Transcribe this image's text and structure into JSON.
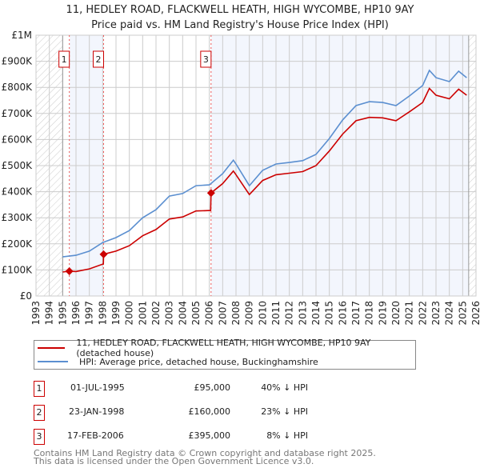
{
  "title": "11, HEDLEY ROAD, FLACKWELL HEATH, HIGH WYCOMBE, HP10 9AY",
  "subtitle": "Price paid vs. HM Land Registry's House Price Index (HPI)",
  "chart_data": {
    "type": "line",
    "xlim": [
      1993,
      2026
    ],
    "ylim": [
      0,
      1000000
    ],
    "x_ticks": [
      1993,
      1994,
      1995,
      1996,
      1997,
      1998,
      1999,
      2000,
      2001,
      2002,
      2003,
      2004,
      2005,
      2006,
      2007,
      2008,
      2009,
      2010,
      2011,
      2012,
      2013,
      2014,
      2015,
      2016,
      2017,
      2018,
      2019,
      2020,
      2021,
      2022,
      2023,
      2024,
      2025,
      2026
    ],
    "y_ticks": [
      0,
      100000,
      200000,
      300000,
      400000,
      500000,
      600000,
      700000,
      800000,
      900000,
      1000000
    ],
    "y_tick_labels": [
      "£0",
      "£100K",
      "£200K",
      "£300K",
      "£400K",
      "£500K",
      "£600K",
      "£700K",
      "£800K",
      "£900K",
      "£1M"
    ],
    "grid": true,
    "hatched_before": 1995.0,
    "hatched_after": 2025.45,
    "series": [
      {
        "name": "11, HEDLEY ROAD, FLACKWELL HEATH, HIGH WYCOMBE, HP10 9AY (detached house)",
        "color": "#cc0000",
        "x": [
          1995.0,
          1995.5,
          1996,
          1997,
          1998.05,
          1998.07,
          1999,
          2000,
          2001,
          2002,
          2003,
          2004,
          2005,
          2006.1,
          2006.13,
          2007,
          2007.8,
          2008,
          2009,
          2010,
          2011,
          2012,
          2013,
          2014,
          2015,
          2016,
          2017,
          2018,
          2019,
          2020,
          2021,
          2022,
          2022.5,
          2023,
          2024,
          2024.7,
          2025.3
        ],
        "y": [
          92000,
          95000,
          94000,
          104000,
          123000,
          160000,
          172000,
          193000,
          231000,
          255000,
          295000,
          303000,
          326000,
          328000,
          395000,
          431000,
          479000,
          465000,
          389000,
          443000,
          465000,
          471000,
          477000,
          500000,
          556000,
          621000,
          672000,
          685000,
          683000,
          672000,
          706000,
          742000,
          796000,
          770000,
          756000,
          793000,
          770000
        ]
      },
      {
        "name": "HPI: Average price, detached house, Buckinghamshire",
        "color": "#5b8fd0",
        "x": [
          1995.0,
          1996,
          1997,
          1998,
          1999,
          2000,
          2001,
          2002,
          2003,
          2004,
          2005,
          2006,
          2007,
          2007.8,
          2008,
          2009,
          2010,
          2011,
          2012,
          2013,
          2014,
          2015,
          2016,
          2017,
          2018,
          2019,
          2020,
          2021,
          2022,
          2022.5,
          2023,
          2024,
          2024.7,
          2025.3
        ],
        "y": [
          150000,
          156000,
          172000,
          205000,
          224000,
          251000,
          300000,
          331000,
          383000,
          393000,
          423000,
          426000,
          469000,
          521000,
          506000,
          423000,
          482000,
          506000,
          512000,
          519000,
          543000,
          604000,
          675000,
          730000,
          745000,
          742000,
          730000,
          767000,
          807000,
          865000,
          837000,
          822000,
          862000,
          837000
        ]
      }
    ],
    "sales": [
      {
        "label": "1",
        "x": 1995.5,
        "y": 95000
      },
      {
        "label": "2",
        "x": 1998.07,
        "y": 160000
      },
      {
        "label": "3",
        "x": 2006.13,
        "y": 395000
      }
    ]
  },
  "legend": {
    "property": "11, HEDLEY ROAD, FLACKWELL HEATH, HIGH WYCOMBE, HP10 9AY (detached house)",
    "hpi": "HPI: Average price, detached house, Buckinghamshire"
  },
  "transactions": [
    {
      "num": "1",
      "date": "01-JUL-1995",
      "price": "£95,000",
      "diff": "40% ↓ HPI"
    },
    {
      "num": "2",
      "date": "23-JAN-1998",
      "price": "£160,000",
      "diff": "23% ↓ HPI"
    },
    {
      "num": "3",
      "date": "17-FEB-2006",
      "price": "£395,000",
      "diff": "8% ↓ HPI"
    }
  ],
  "footer": {
    "line1": "Contains HM Land Registry data © Crown copyright and database right 2025.",
    "line2": "This data is licensed under the Open Government Licence v3.0."
  }
}
